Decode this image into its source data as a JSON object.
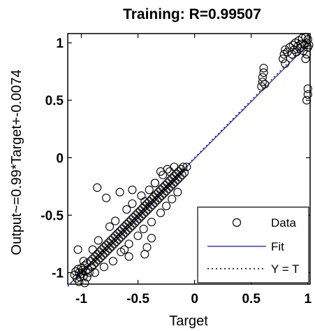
{
  "chart_data": {
    "type": "scatter",
    "title": "Training: R=0.99507",
    "xlabel": "Target",
    "ylabel": "Output~=0.99*Target+-0.0074",
    "xlim": [
      -1.12,
      1.02
    ],
    "ylim": [
      -1.1,
      1.08
    ],
    "x_ticks": [
      -1,
      -0.5,
      0,
      0.5,
      1
    ],
    "x_tick_labels": [
      "-1",
      "-0.5",
      "0",
      "0.5",
      "1"
    ],
    "y_ticks": [
      -1,
      -0.5,
      0,
      0.5,
      1
    ],
    "y_tick_labels": [
      "-1",
      "-0.5",
      "0",
      "0.5",
      "1"
    ],
    "grid": false,
    "legend": {
      "placement": "bottom-right",
      "entries": [
        "Data",
        "Fit",
        "Y = T"
      ]
    },
    "colors": {
      "data": "#000000",
      "fit": "#3a3acc",
      "identity": "#000000"
    },
    "fit": {
      "slope": 0.99,
      "intercept": -0.0074
    },
    "series": [
      {
        "name": "Data",
        "points": [
          [
            -1.06,
            -1.02
          ],
          [
            -1.05,
            -0.99
          ],
          [
            -1.04,
            -1.05
          ],
          [
            -1.03,
            -0.97
          ],
          [
            -1.02,
            -1.0
          ],
          [
            -1.01,
            -1.04
          ],
          [
            -1.0,
            -0.96
          ],
          [
            -1.0,
            -1.01
          ],
          [
            -0.99,
            -0.98
          ],
          [
            -0.98,
            -1.03
          ],
          [
            -0.97,
            -0.94
          ],
          [
            -0.96,
            -0.99
          ],
          [
            -0.95,
            -0.92
          ],
          [
            -0.94,
            -0.97
          ],
          [
            -0.93,
            -1.0
          ],
          [
            -0.92,
            -0.9
          ],
          [
            -0.91,
            -0.95
          ],
          [
            -0.9,
            -0.88
          ],
          [
            -0.89,
            -0.93
          ],
          [
            -0.88,
            -0.86
          ],
          [
            -0.87,
            -0.91
          ],
          [
            -0.86,
            -0.84
          ],
          [
            -0.85,
            -0.89
          ],
          [
            -0.84,
            -0.82
          ],
          [
            -0.83,
            -0.87
          ],
          [
            -0.82,
            -0.8
          ],
          [
            -0.81,
            -0.85
          ],
          [
            -0.8,
            -0.78
          ],
          [
            -0.79,
            -0.83
          ],
          [
            -0.78,
            -0.76
          ],
          [
            -0.77,
            -0.81
          ],
          [
            -0.76,
            -0.74
          ],
          [
            -0.75,
            -0.79
          ],
          [
            -0.74,
            -0.72
          ],
          [
            -0.73,
            -0.77
          ],
          [
            -0.72,
            -0.7
          ],
          [
            -0.71,
            -0.75
          ],
          [
            -0.7,
            -0.68
          ],
          [
            -0.69,
            -0.73
          ],
          [
            -0.68,
            -0.66
          ],
          [
            -0.67,
            -0.71
          ],
          [
            -0.66,
            -0.64
          ],
          [
            -0.65,
            -0.69
          ],
          [
            -0.64,
            -0.62
          ],
          [
            -0.63,
            -0.67
          ],
          [
            -0.62,
            -0.6
          ],
          [
            -0.61,
            -0.65
          ],
          [
            -0.6,
            -0.58
          ],
          [
            -0.59,
            -0.63
          ],
          [
            -0.58,
            -0.56
          ],
          [
            -0.57,
            -0.61
          ],
          [
            -0.56,
            -0.54
          ],
          [
            -0.55,
            -0.59
          ],
          [
            -0.54,
            -0.52
          ],
          [
            -0.53,
            -0.57
          ],
          [
            -0.52,
            -0.5
          ],
          [
            -0.51,
            -0.55
          ],
          [
            -0.5,
            -0.48
          ],
          [
            -0.49,
            -0.53
          ],
          [
            -0.48,
            -0.46
          ],
          [
            -0.47,
            -0.51
          ],
          [
            -0.46,
            -0.44
          ],
          [
            -0.45,
            -0.49
          ],
          [
            -0.44,
            -0.42
          ],
          [
            -0.43,
            -0.47
          ],
          [
            -0.42,
            -0.4
          ],
          [
            -0.41,
            -0.45
          ],
          [
            -0.4,
            -0.38
          ],
          [
            -0.39,
            -0.43
          ],
          [
            -0.38,
            -0.36
          ],
          [
            -0.37,
            -0.41
          ],
          [
            -0.36,
            -0.34
          ],
          [
            -0.35,
            -0.39
          ],
          [
            -0.34,
            -0.32
          ],
          [
            -0.33,
            -0.37
          ],
          [
            -0.32,
            -0.3
          ],
          [
            -0.31,
            -0.35
          ],
          [
            -0.3,
            -0.28
          ],
          [
            -0.29,
            -0.33
          ],
          [
            -0.28,
            -0.26
          ],
          [
            -0.27,
            -0.31
          ],
          [
            -0.26,
            -0.24
          ],
          [
            -0.25,
            -0.29
          ],
          [
            -0.24,
            -0.22
          ],
          [
            -0.23,
            -0.27
          ],
          [
            -0.22,
            -0.2
          ],
          [
            -0.21,
            -0.25
          ],
          [
            -0.2,
            -0.18
          ],
          [
            -0.19,
            -0.23
          ],
          [
            -0.18,
            -0.16
          ],
          [
            -0.17,
            -0.21
          ],
          [
            -0.16,
            -0.14
          ],
          [
            -0.15,
            -0.19
          ],
          [
            -0.14,
            -0.12
          ],
          [
            -0.13,
            -0.17
          ],
          [
            -0.12,
            -0.1
          ],
          [
            -0.11,
            -0.15
          ],
          [
            -0.1,
            -0.08
          ],
          [
            -0.09,
            -0.13
          ],
          [
            -0.07,
            -0.08
          ],
          [
            -0.98,
            -0.9
          ],
          [
            -0.95,
            -1.04
          ],
          [
            -0.9,
            -0.8
          ],
          [
            -0.88,
            -1.0
          ],
          [
            -0.85,
            -0.72
          ],
          [
            -0.8,
            -0.95
          ],
          [
            -0.75,
            -0.6
          ],
          [
            -0.72,
            -0.9
          ],
          [
            -0.7,
            -0.55
          ],
          [
            -0.65,
            -0.82
          ],
          [
            -0.6,
            -0.45
          ],
          [
            -0.58,
            -0.75
          ],
          [
            -0.55,
            -0.4
          ],
          [
            -0.5,
            -0.68
          ],
          [
            -0.47,
            -0.33
          ],
          [
            -0.45,
            -0.62
          ],
          [
            -0.4,
            -0.28
          ],
          [
            -0.38,
            -0.56
          ],
          [
            -0.35,
            -0.22
          ],
          [
            -0.3,
            -0.48
          ],
          [
            -0.28,
            -0.15
          ],
          [
            -0.25,
            -0.42
          ],
          [
            -0.22,
            -0.12
          ],
          [
            -0.2,
            -0.36
          ],
          [
            -0.18,
            -0.08
          ],
          [
            -0.15,
            -0.3
          ],
          [
            -0.86,
            -0.26
          ],
          [
            -0.78,
            -0.35
          ],
          [
            -0.66,
            -0.3
          ],
          [
            -0.55,
            -0.28
          ],
          [
            -0.44,
            -0.38
          ],
          [
            -0.35,
            -0.22
          ],
          [
            -0.3,
            -0.12
          ],
          [
            -0.24,
            -0.1
          ],
          [
            -0.62,
            -0.8
          ],
          [
            -0.58,
            -0.86
          ],
          [
            -0.44,
            -0.84
          ],
          [
            -0.38,
            -0.7
          ],
          [
            -0.42,
            -0.78
          ],
          [
            -1.02,
            -1.08
          ],
          [
            -0.97,
            -1.09
          ],
          [
            -1.03,
            -0.8
          ],
          [
            0.59,
            0.62
          ],
          [
            0.6,
            0.66
          ],
          [
            0.6,
            0.7
          ],
          [
            0.61,
            0.74
          ],
          [
            0.61,
            0.78
          ],
          [
            0.62,
            0.64
          ],
          [
            0.78,
            0.86
          ],
          [
            0.79,
            0.9
          ],
          [
            0.8,
            0.94
          ],
          [
            0.8,
            0.82
          ],
          [
            0.82,
            0.92
          ],
          [
            0.84,
            0.96
          ],
          [
            0.86,
            0.9
          ],
          [
            0.87,
            0.98
          ],
          [
            0.88,
            0.94
          ],
          [
            0.89,
            1.0
          ],
          [
            0.9,
            0.92
          ],
          [
            0.91,
            0.97
          ],
          [
            0.92,
            1.02
          ],
          [
            0.93,
            0.95
          ],
          [
            0.94,
            0.99
          ],
          [
            0.95,
            1.04
          ],
          [
            0.96,
            0.93
          ],
          [
            0.97,
            0.98
          ],
          [
            0.98,
            1.05
          ],
          [
            0.99,
            1.0
          ],
          [
            1.0,
            0.96
          ],
          [
            1.0,
            1.03
          ],
          [
            1.01,
            0.98
          ],
          [
            0.99,
            0.9
          ],
          [
            0.98,
            0.86
          ],
          [
            1.0,
            0.6
          ],
          [
            1.0,
            0.55
          ],
          [
            0.99,
            0.5
          ]
        ]
      }
    ]
  }
}
